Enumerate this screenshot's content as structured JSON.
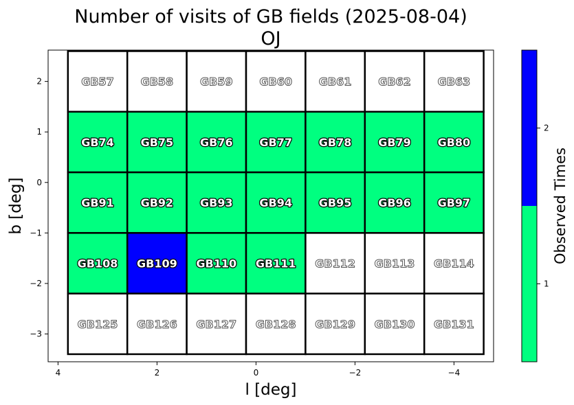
{
  "chart_data": {
    "type": "heatmap",
    "title": "Number of visits of GB fields (2025-08-04)",
    "subtitle": "OJ",
    "xlabel": "l [deg]",
    "ylabel": "b [deg]",
    "xlim": [
      4.2,
      -4.8
    ],
    "ylim": [
      -3.55,
      2.62
    ],
    "x_direction": "decreasing to the right",
    "x_ticks": [
      {
        "value": 4,
        "label": "4"
      },
      {
        "value": 2,
        "label": "2"
      },
      {
        "value": 0,
        "label": "0"
      },
      {
        "value": -2,
        "label": "−2"
      },
      {
        "value": -4,
        "label": "−4"
      }
    ],
    "y_ticks": [
      {
        "value": 2,
        "label": "2"
      },
      {
        "value": 1,
        "label": "1"
      },
      {
        "value": 0,
        "label": "0"
      },
      {
        "value": -1,
        "label": "−1"
      },
      {
        "value": -2,
        "label": "−2"
      },
      {
        "value": -3,
        "label": "−3"
      }
    ],
    "grid": false,
    "column_l_edges": [
      3.8,
      2.6,
      1.4,
      0.2,
      -1.0,
      -2.2,
      -3.4,
      -4.6
    ],
    "row_b_edges": [
      2.6,
      1.4,
      0.2,
      -1.0,
      -2.2,
      -3.4
    ],
    "fields": [
      [
        "GB57",
        "GB58",
        "GB59",
        "GB60",
        "GB61",
        "GB62",
        "GB63"
      ],
      [
        "GB74",
        "GB75",
        "GB76",
        "GB77",
        "GB78",
        "GB79",
        "GB80"
      ],
      [
        "GB91",
        "GB92",
        "GB93",
        "GB94",
        "GB95",
        "GB96",
        "GB97"
      ],
      [
        "GB108",
        "GB109",
        "GB110",
        "GB111",
        "GB112",
        "GB113",
        "GB114"
      ],
      [
        "GB125",
        "GB126",
        "GB127",
        "GB128",
        "GB129",
        "GB130",
        "GB131"
      ]
    ],
    "visits": [
      [
        0,
        0,
        0,
        0,
        0,
        0,
        0
      ],
      [
        1,
        1,
        1,
        1,
        1,
        1,
        1
      ],
      [
        1,
        1,
        1,
        1,
        1,
        1,
        1
      ],
      [
        1,
        2,
        1,
        1,
        0,
        0,
        0
      ],
      [
        0,
        0,
        0,
        0,
        0,
        0,
        0
      ]
    ],
    "colors": {
      "0": "#ffffff",
      "1": "#00ff80",
      "2": "#0000ff"
    },
    "colorbar": {
      "label": "Observed Times",
      "range": [
        0.5,
        2.5
      ],
      "ticks": [
        {
          "value": 1,
          "label": "1"
        },
        {
          "value": 2,
          "label": "2"
        }
      ],
      "segments": [
        {
          "from": 0.5,
          "to": 1.5,
          "color": "#00ff80"
        },
        {
          "from": 1.5,
          "to": 2.5,
          "color": "#0000ff"
        }
      ]
    }
  }
}
